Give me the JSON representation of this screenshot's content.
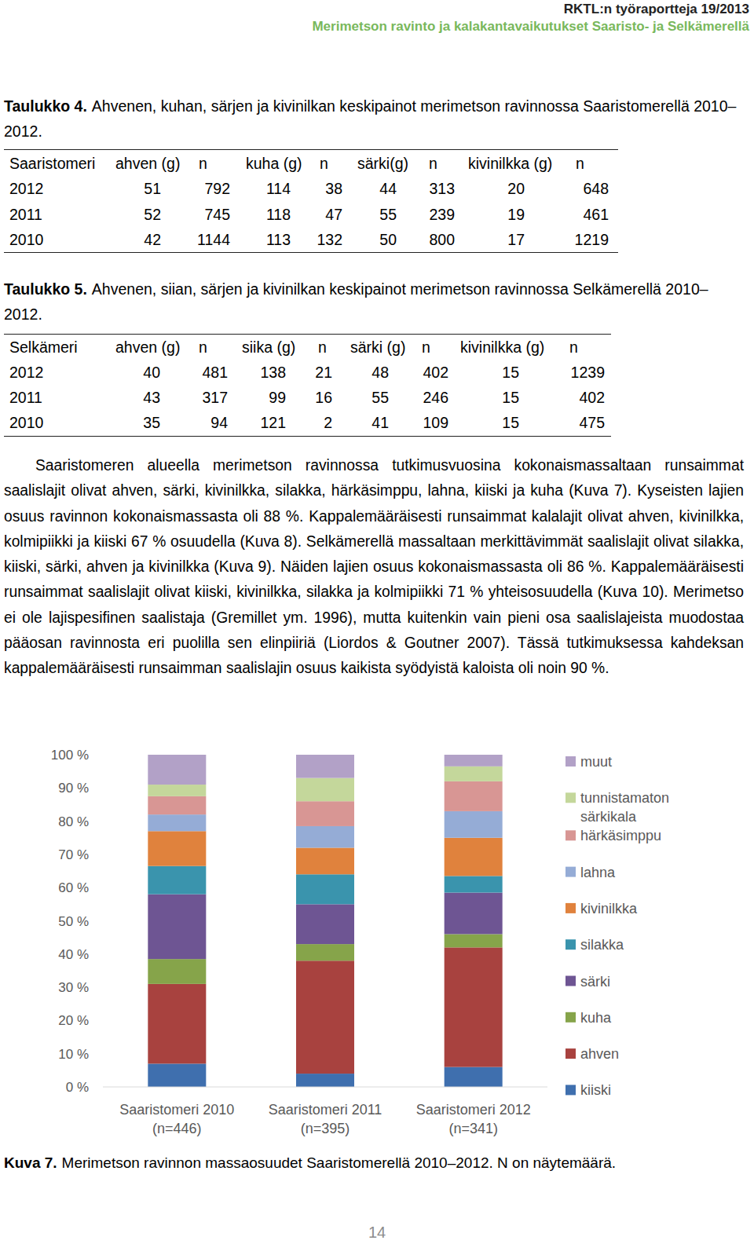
{
  "header": {
    "report": "RKTL:n työraportteja 19/2013",
    "title": "Merimetson ravinto ja kalakantavaikutukset Saaristo- ja Selkämerellä"
  },
  "tables": [
    {
      "caption_label": "Taulukko 4.",
      "caption": "Ahvenen, kuhan, särjen ja kivinilkan keskipainot merimetson ravinnossa Saaristomerellä 2010–2012.",
      "columns": [
        "Saaristomeri",
        "ahven (g)",
        "n",
        "kuha (g)",
        "n",
        "särki(g)",
        "n",
        "kivinilkka (g)",
        "n"
      ],
      "rows": [
        [
          2012,
          51,
          792,
          114,
          38,
          44,
          313,
          20,
          648
        ],
        [
          2011,
          52,
          745,
          118,
          47,
          55,
          239,
          19,
          461
        ],
        [
          2010,
          42,
          1144,
          113,
          132,
          50,
          800,
          17,
          1219
        ]
      ]
    },
    {
      "caption_label": "Taulukko 5.",
      "caption": "Ahvenen, siian, särjen ja kivinilkan keskipainot merimetson ravinnossa Selkämerellä 2010–2012.",
      "columns": [
        "Selkämeri",
        "ahven (g)",
        "n",
        "siika (g)",
        "n",
        "särki (g)",
        "n",
        "kivinilkka (g)",
        "n"
      ],
      "rows": [
        [
          2012,
          40,
          481,
          138,
          21,
          48,
          402,
          15,
          1239
        ],
        [
          2011,
          43,
          317,
          99,
          16,
          55,
          246,
          15,
          402
        ],
        [
          2010,
          35,
          94,
          121,
          2,
          41,
          109,
          15,
          475
        ]
      ]
    }
  ],
  "paragraph": "Saaristomeren alueella merimetson ravinnossa tutkimusvuosina kokonaismassaltaan runsaimmat saalislajit olivat ahven, särki, kivinilkka, silakka, härkäsimppu, lahna, kiiski ja kuha (Kuva 7). Kyseisten lajien osuus ravinnon kokonaismassasta oli 88 %. Kappalemääräisesti runsaimmat kalalajit olivat ahven, kivinilkka, kolmipiikki ja kiiski 67 % osuudella (Kuva 8). Selkämerellä massaltaan merkittävimmät saalislajit olivat silakka, kiiski, särki, ahven ja kivinilkka (Kuva 9). Näiden lajien osuus kokonaismassasta oli 86 %. Kappalemääräisesti runsaimmat saalislajit olivat kiiski, kivinilkka, silakka ja kolmipiikki 71 % yhteisosuudella (Kuva 10). Merimetso ei ole lajispesifinen saalistaja (Gremillet ym. 1996), mutta kuitenkin vain pieni osa saalislajeista muodostaa pääosan ravinnosta eri puolilla sen elinpiiriä (Liordos & Goutner 2007). Tässä tutkimuksessa kahdeksan kappalemääräisesti runsaimman saalislajin osuus kaikista syödyistä kaloista oli noin 90 %.",
  "chart_data": {
    "type": "bar",
    "stacked": true,
    "grid": false,
    "legend": "right",
    "categories": [
      "Saaristomeri 2010 (n=446)",
      "Saaristomeri 2011 (n=395)",
      "Saaristomeri 2012 (n=341)"
    ],
    "series": [
      {
        "name": "kiiski",
        "color": "#3f6fae",
        "values": [
          7,
          4,
          6
        ]
      },
      {
        "name": "ahven",
        "color": "#a8423f",
        "values": [
          24,
          34,
          36
        ]
      },
      {
        "name": "kuha",
        "color": "#86a44a",
        "values": [
          7.5,
          5,
          4
        ]
      },
      {
        "name": "särki",
        "color": "#6e5593",
        "values": [
          19.5,
          12,
          12.5
        ]
      },
      {
        "name": "silakka",
        "color": "#3a94ad",
        "values": [
          8.5,
          9,
          5
        ]
      },
      {
        "name": "kivinilkka",
        "color": "#e0823d",
        "values": [
          10.5,
          8,
          11.5
        ]
      },
      {
        "name": "lahna",
        "color": "#95acd6",
        "values": [
          5,
          6.5,
          8
        ]
      },
      {
        "name": "härkäsimppu",
        "color": "#d89694",
        "values": [
          5.5,
          7.5,
          9
        ]
      },
      {
        "name": "tunnistamaton särkikala",
        "color": "#c4d79b",
        "values": [
          3.5,
          7,
          4.5
        ]
      },
      {
        "name": "muut",
        "color": "#b2a1c7",
        "values": [
          9,
          7,
          3.5
        ]
      }
    ],
    "ylim": [
      0,
      100
    ],
    "yticks": [
      {
        "value": 0,
        "label": "0 %"
      },
      {
        "value": 10,
        "label": "10 %"
      },
      {
        "value": 20,
        "label": "20 %"
      },
      {
        "value": 30,
        "label": "30 %"
      },
      {
        "value": 40,
        "label": "40 %"
      },
      {
        "value": 50,
        "label": "50 %"
      },
      {
        "value": 60,
        "label": "60 %"
      },
      {
        "value": 70,
        "label": "70 %"
      },
      {
        "value": 80,
        "label": "80 %"
      },
      {
        "value": 90,
        "label": "90 %"
      },
      {
        "value": 100,
        "label": "100 %"
      }
    ]
  },
  "figure_caption": {
    "label": "Kuva 7.",
    "text": "Merimetson ravinnon massaosuudet Saaristomerellä 2010–2012. N on näytemäärä."
  },
  "page_number": 14
}
